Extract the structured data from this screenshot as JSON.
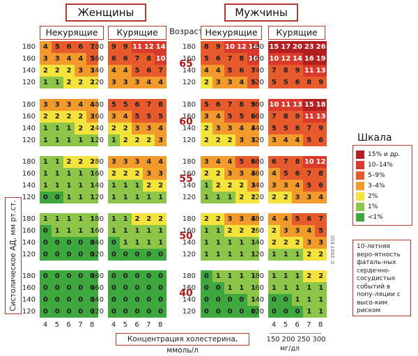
{
  "headers": {
    "women": "Женщины",
    "men": "Мужчины",
    "nonsmoking": "Некурящие",
    "smoking": "Курящие",
    "age": "Возраст"
  },
  "chart_data": {
    "type": "heatmap",
    "y_ticks": [
      "180",
      "160",
      "140",
      "120"
    ],
    "x_ticks": [
      "4",
      "5",
      "6",
      "7",
      "8"
    ],
    "mg_ticks": [
      "150",
      "200",
      "250",
      "300"
    ],
    "ylabel": "Систолическое АД, мм рт.ст.",
    "xlabel": "Концентрация холестерина, ммоль/л",
    "mg_unit": "мг/дл",
    "ages": [
      "65",
      "60",
      "55",
      "50",
      "40"
    ],
    "groups": [
      "women-nonsmoking",
      "women-smoking",
      "men-nonsmoking",
      "men-smoking"
    ],
    "values": {
      "65": {
        "women-nonsmoking": [
          [
            4,
            5,
            6,
            6,
            7
          ],
          [
            3,
            3,
            4,
            4,
            5
          ],
          [
            2,
            2,
            2,
            3,
            3
          ],
          [
            1,
            1,
            2,
            2,
            2
          ]
        ],
        "women-smoking": [
          [
            9,
            9,
            11,
            12,
            14
          ],
          [
            6,
            6,
            7,
            8,
            10
          ],
          [
            4,
            4,
            5,
            6,
            7
          ],
          [
            3,
            3,
            3,
            4,
            4
          ]
        ],
        "men-nonsmoking": [
          [
            8,
            9,
            10,
            12,
            14
          ],
          [
            5,
            6,
            7,
            8,
            10
          ],
          [
            4,
            4,
            5,
            6,
            7
          ],
          [
            2,
            3,
            3,
            4,
            5
          ]
        ],
        "men-smoking": [
          [
            15,
            17,
            20,
            23,
            26
          ],
          [
            10,
            12,
            14,
            16,
            19
          ],
          [
            7,
            8,
            9,
            11,
            13
          ],
          [
            5,
            5,
            6,
            8,
            9
          ]
        ]
      },
      "60": {
        "women-nonsmoking": [
          [
            3,
            3,
            3,
            4,
            4
          ],
          [
            2,
            2,
            2,
            2,
            3
          ],
          [
            1,
            1,
            1,
            2,
            2
          ],
          [
            1,
            1,
            1,
            1,
            1
          ]
        ],
        "women-smoking": [
          [
            5,
            5,
            6,
            7,
            8
          ],
          [
            3,
            4,
            5,
            5,
            5
          ],
          [
            2,
            2,
            3,
            3,
            4
          ],
          [
            1,
            2,
            2,
            2,
            3
          ]
        ],
        "men-nonsmoking": [
          [
            5,
            6,
            7,
            8,
            9
          ],
          [
            3,
            4,
            5,
            5,
            6
          ],
          [
            2,
            3,
            3,
            4,
            4
          ],
          [
            2,
            2,
            2,
            3,
            3
          ]
        ],
        "men-smoking": [
          [
            10,
            11,
            13,
            15,
            18
          ],
          [
            7,
            8,
            9,
            11,
            13
          ],
          [
            5,
            5,
            6,
            7,
            9
          ],
          [
            3,
            4,
            4,
            5,
            6
          ]
        ]
      },
      "55": {
        "women-nonsmoking": [
          [
            1,
            1,
            2,
            2,
            2
          ],
          [
            1,
            1,
            1,
            1,
            1
          ],
          [
            1,
            1,
            1,
            1,
            1
          ],
          [
            0,
            0,
            1,
            1,
            1
          ]
        ],
        "women-smoking": [
          [
            3,
            3,
            3,
            4,
            4
          ],
          [
            2,
            2,
            2,
            3,
            3
          ],
          [
            1,
            1,
            1,
            2,
            2
          ],
          [
            1,
            1,
            1,
            1,
            1
          ]
        ],
        "men-nonsmoking": [
          [
            3,
            4,
            4,
            5,
            6
          ],
          [
            2,
            2,
            3,
            3,
            4
          ],
          [
            1,
            2,
            2,
            2,
            3
          ],
          [
            1,
            1,
            1,
            2,
            2
          ]
        ],
        "men-smoking": [
          [
            6,
            7,
            8,
            10,
            12
          ],
          [
            4,
            5,
            6,
            7,
            8
          ],
          [
            3,
            3,
            4,
            5,
            6
          ],
          [
            2,
            2,
            3,
            3,
            4
          ]
        ]
      },
      "50": {
        "women-nonsmoking": [
          [
            1,
            1,
            1,
            1,
            1
          ],
          [
            0,
            1,
            1,
            1,
            1
          ],
          [
            0,
            0,
            0,
            0,
            0
          ],
          [
            0,
            0,
            0,
            0,
            0
          ]
        ],
        "women-smoking": [
          [
            1,
            1,
            2,
            2,
            2
          ],
          [
            1,
            1,
            1,
            1,
            1
          ],
          [
            0,
            1,
            1,
            1,
            1
          ],
          [
            0,
            0,
            0,
            0,
            0
          ]
        ],
        "men-nonsmoking": [
          [
            2,
            2,
            3,
            3,
            4
          ],
          [
            1,
            1,
            2,
            2,
            2
          ],
          [
            1,
            1,
            1,
            1,
            1
          ],
          [
            1,
            1,
            1,
            1,
            1
          ]
        ],
        "men-smoking": [
          [
            4,
            4,
            5,
            6,
            7
          ],
          [
            2,
            3,
            3,
            4,
            5
          ],
          [
            2,
            2,
            2,
            3,
            3
          ],
          [
            1,
            1,
            1,
            2,
            2
          ]
        ]
      },
      "40": {
        "women-nonsmoking": [
          [
            0,
            0,
            0,
            0,
            0
          ],
          [
            0,
            0,
            0,
            0,
            0
          ],
          [
            0,
            0,
            0,
            0,
            0
          ],
          [
            0,
            0,
            0,
            0,
            0
          ]
        ],
        "women-smoking": [
          [
            0,
            0,
            0,
            0,
            0
          ],
          [
            0,
            0,
            0,
            0,
            0
          ],
          [
            0,
            0,
            0,
            0,
            0
          ],
          [
            0,
            0,
            0,
            0,
            0
          ]
        ],
        "men-nonsmoking": [
          [
            0,
            1,
            1,
            1,
            1
          ],
          [
            0,
            0,
            1,
            1,
            1
          ],
          [
            0,
            0,
            0,
            0,
            1
          ],
          [
            0,
            0,
            0,
            0,
            0
          ]
        ],
        "men-smoking": [
          [
            1,
            1,
            1,
            2,
            2
          ],
          [
            1,
            1,
            1,
            1,
            1
          ],
          [
            0,
            0,
            1,
            1,
            1
          ],
          [
            0,
            0,
            0,
            1,
            1
          ]
        ]
      }
    },
    "legend_title": "Шкала",
    "legend": [
      {
        "label": "15% и др.",
        "color": "#b31e1e"
      },
      {
        "label": "10–14%",
        "color": "#d93a2b"
      },
      {
        "label": "5–9%",
        "color": "#e65a2b"
      },
      {
        "label": "3–4%",
        "color": "#f39a2c"
      },
      {
        "label": "2%",
        "color": "#f4e33a"
      },
      {
        "label": "1%",
        "color": "#8dc549"
      },
      {
        "label": "<1%",
        "color": "#3ea83e"
      }
    ]
  },
  "note": "10-летняя веро-ятность фаталь-ных сердечно-сосудистых событий в попу-ляции с высо-ким риском",
  "copyright": "© 2007 ESC"
}
